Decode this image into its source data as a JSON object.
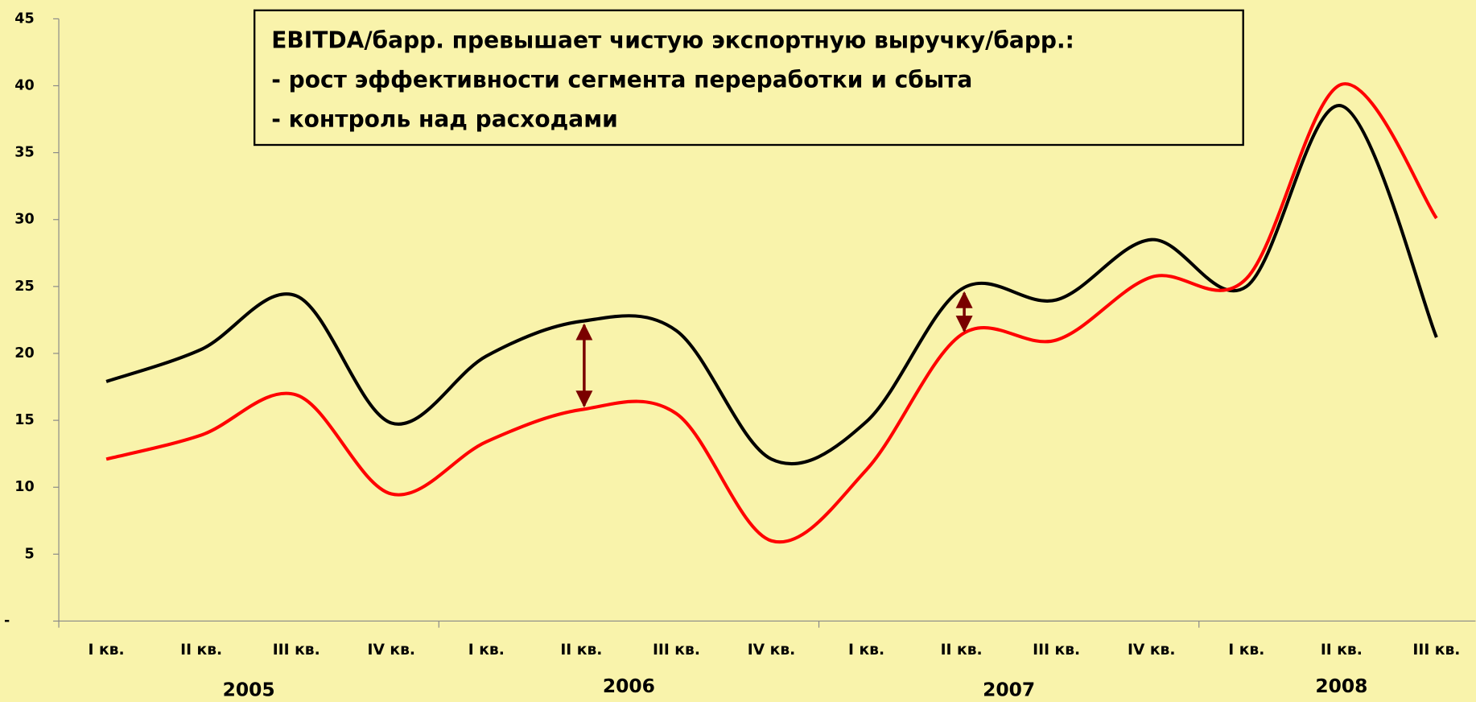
{
  "chart_data": {
    "type": "line",
    "categories": [
      "I кв.",
      "II кв.",
      "III кв.",
      "IV кв.",
      "I кв.",
      "II кв.",
      "III кв.",
      "IV кв.",
      "I кв.",
      "II кв.",
      "III кв.",
      "IV кв.",
      "I кв.",
      "II кв.",
      "III кв."
    ],
    "years": [
      "2005",
      "2006",
      "2007",
      "2008"
    ],
    "series": [
      {
        "color": "#000000",
        "values": [
          17.9,
          20.3,
          24.3,
          14.8,
          19.8,
          22.4,
          21.7,
          12.1,
          14.9,
          24.8,
          24.0,
          28.5,
          25.0,
          38.5,
          21.2
        ]
      },
      {
        "color": "#ff0000",
        "values": [
          12.1,
          13.9,
          16.9,
          9.5,
          13.4,
          15.8,
          15.5,
          6.0,
          11.3,
          21.4,
          21.0,
          25.7,
          25.6,
          40.1,
          30.1
        ]
      }
    ],
    "ylim": [
      0,
      45
    ],
    "yticks": [
      {
        "value": 0,
        "label": "-"
      },
      5,
      10,
      15,
      20,
      25,
      30,
      35,
      40,
      45
    ],
    "annotation": [
      "EBITDA/барр. превышает чистую экспортную выручку/барр.:",
      "- рост эффективности сегмента переработки и сбыта",
      "- контроль над расходами"
    ]
  }
}
